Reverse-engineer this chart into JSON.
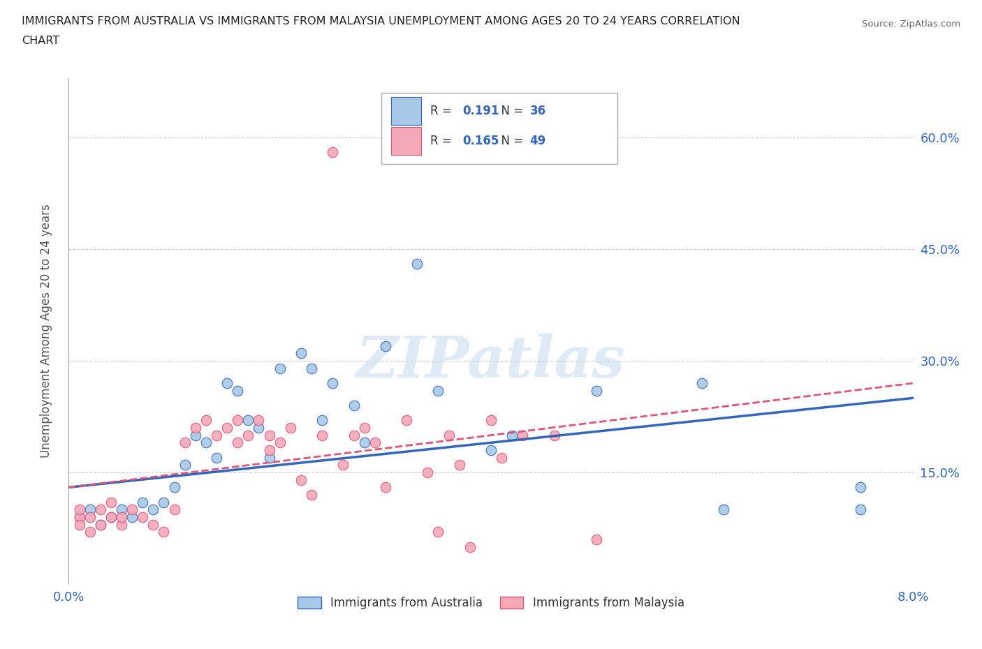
{
  "title_line1": "IMMIGRANTS FROM AUSTRALIA VS IMMIGRANTS FROM MALAYSIA UNEMPLOYMENT AMONG AGES 20 TO 24 YEARS CORRELATION",
  "title_line2": "CHART",
  "source": "Source: ZipAtlas.com",
  "ylabel": "Unemployment Among Ages 20 to 24 years",
  "xlim": [
    0.0,
    0.08
  ],
  "ylim": [
    0.0,
    0.68
  ],
  "yticks": [
    0.0,
    0.15,
    0.3,
    0.45,
    0.6
  ],
  "ytick_labels": [
    "",
    "15.0%",
    "30.0%",
    "45.0%",
    "60.0%"
  ],
  "xticks": [
    0.0,
    0.02,
    0.04,
    0.06,
    0.08
  ],
  "xtick_labels": [
    "0.0%",
    "",
    "",
    "",
    "8.0%"
  ],
  "color_australia": "#A8C8E8",
  "color_malaysia": "#F4A8B8",
  "line_color_australia": "#3366BB",
  "line_color_malaysia": "#DD5577",
  "R_australia": 0.191,
  "N_australia": 36,
  "R_malaysia": 0.165,
  "N_malaysia": 49,
  "watermark": "ZIPatlas",
  "legend_label_australia": "Immigrants from Australia",
  "legend_label_malaysia": "Immigrants from Malaysia",
  "aus_line_x0": 0.0,
  "aus_line_y0": 0.13,
  "aus_line_x1": 0.08,
  "aus_line_y1": 0.25,
  "mal_line_x0": 0.0,
  "mal_line_y0": 0.13,
  "mal_line_x1": 0.08,
  "mal_line_y1": 0.27,
  "australia_x": [
    0.001,
    0.002,
    0.003,
    0.004,
    0.005,
    0.006,
    0.007,
    0.008,
    0.009,
    0.01,
    0.011,
    0.012,
    0.013,
    0.014,
    0.015,
    0.016,
    0.017,
    0.018,
    0.019,
    0.02,
    0.022,
    0.023,
    0.024,
    0.025,
    0.027,
    0.028,
    0.03,
    0.033,
    0.035,
    0.04,
    0.042,
    0.05,
    0.06,
    0.062,
    0.075,
    0.075
  ],
  "australia_y": [
    0.09,
    0.1,
    0.08,
    0.09,
    0.1,
    0.09,
    0.11,
    0.1,
    0.11,
    0.13,
    0.16,
    0.2,
    0.19,
    0.17,
    0.27,
    0.26,
    0.22,
    0.21,
    0.17,
    0.29,
    0.31,
    0.29,
    0.22,
    0.27,
    0.24,
    0.19,
    0.32,
    0.43,
    0.26,
    0.18,
    0.2,
    0.26,
    0.27,
    0.1,
    0.13,
    0.1
  ],
  "malaysia_x": [
    0.001,
    0.001,
    0.001,
    0.002,
    0.002,
    0.003,
    0.003,
    0.004,
    0.004,
    0.005,
    0.005,
    0.006,
    0.007,
    0.008,
    0.009,
    0.01,
    0.011,
    0.012,
    0.013,
    0.014,
    0.015,
    0.016,
    0.016,
    0.017,
    0.018,
    0.019,
    0.019,
    0.02,
    0.021,
    0.022,
    0.023,
    0.024,
    0.025,
    0.026,
    0.027,
    0.028,
    0.029,
    0.03,
    0.032,
    0.034,
    0.035,
    0.036,
    0.037,
    0.038,
    0.04,
    0.041,
    0.043,
    0.046,
    0.05
  ],
  "malaysia_y": [
    0.09,
    0.1,
    0.08,
    0.09,
    0.07,
    0.1,
    0.08,
    0.09,
    0.11,
    0.08,
    0.09,
    0.1,
    0.09,
    0.08,
    0.07,
    0.1,
    0.19,
    0.21,
    0.22,
    0.2,
    0.21,
    0.19,
    0.22,
    0.2,
    0.22,
    0.18,
    0.2,
    0.19,
    0.21,
    0.14,
    0.12,
    0.2,
    0.58,
    0.16,
    0.2,
    0.21,
    0.19,
    0.13,
    0.22,
    0.15,
    0.07,
    0.2,
    0.16,
    0.05,
    0.22,
    0.17,
    0.2,
    0.2,
    0.06
  ]
}
